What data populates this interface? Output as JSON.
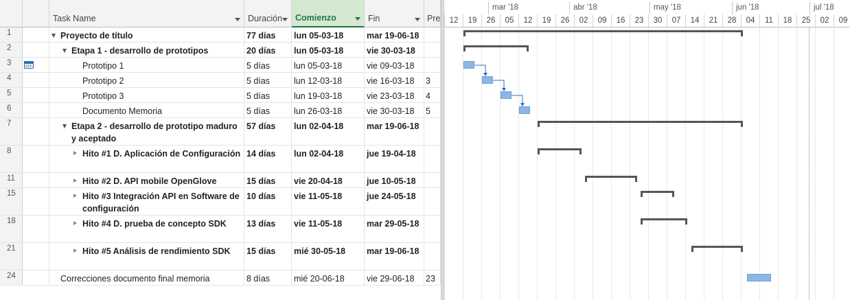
{
  "columns": {
    "info_glyph": "i",
    "task_name": "Task Name",
    "duration": "Duración",
    "start": "Comienzo",
    "finish": "Fin",
    "predecessors": "Pre"
  },
  "timescale": {
    "months": [
      "mar '18",
      "abr '18",
      "may '18",
      "jun '18",
      "jul '18"
    ],
    "weeks": [
      "12",
      "19",
      "26",
      "05",
      "12",
      "19",
      "26",
      "02",
      "09",
      "16",
      "23",
      "30",
      "07",
      "14",
      "21",
      "28",
      "04",
      "11",
      "18",
      "25",
      "02",
      "09"
    ]
  },
  "tasks": [
    {
      "id": "1",
      "name": "Proyecto de título",
      "duration": "77 días",
      "start": "lun 05-03-18",
      "finish": "mar 19-06-18",
      "pred": "",
      "summary": true,
      "level": 0,
      "collapsed": false,
      "indicator": ""
    },
    {
      "id": "2",
      "name": "Etapa 1 - desarrollo de prototipos",
      "duration": "20 días",
      "start": "lun 05-03-18",
      "finish": "vie 30-03-18",
      "pred": "",
      "summary": true,
      "level": 1,
      "collapsed": false,
      "indicator": ""
    },
    {
      "id": "3",
      "name": "Prototipo 1",
      "duration": "5 días",
      "start": "lun 05-03-18",
      "finish": "vie 09-03-18",
      "pred": "",
      "summary": false,
      "level": 2,
      "collapsed": false,
      "indicator": "calendar-icon"
    },
    {
      "id": "4",
      "name": "Prototipo 2",
      "duration": "5 días",
      "start": "lun 12-03-18",
      "finish": "vie 16-03-18",
      "pred": "3",
      "summary": false,
      "level": 2,
      "collapsed": false,
      "indicator": ""
    },
    {
      "id": "5",
      "name": "Prototipo 3",
      "duration": "5 días",
      "start": "lun 19-03-18",
      "finish": "vie 23-03-18",
      "pred": "4",
      "summary": false,
      "level": 2,
      "collapsed": false,
      "indicator": ""
    },
    {
      "id": "6",
      "name": "Documento Memoria",
      "duration": "5 días",
      "start": "lun 26-03-18",
      "finish": "vie 30-03-18",
      "pred": "5",
      "summary": false,
      "level": 2,
      "collapsed": false,
      "indicator": ""
    },
    {
      "id": "7",
      "name": "Etapa 2 - desarrollo de prototipo maduro y aceptado",
      "duration": "57 días",
      "start": "lun 02-04-18",
      "finish": "mar 19-06-18",
      "pred": "",
      "summary": true,
      "level": 1,
      "collapsed": false,
      "indicator": ""
    },
    {
      "id": "8",
      "name": "Hito #1 D. Aplicación de Configuración",
      "duration": "14 días",
      "start": "lun 02-04-18",
      "finish": "jue 19-04-18",
      "pred": "",
      "summary": true,
      "level": 2,
      "collapsed": true,
      "indicator": ""
    },
    {
      "id": "11",
      "name": "Hito #2 D. API mobile OpenGlove",
      "duration": "15 días",
      "start": "vie 20-04-18",
      "finish": "jue 10-05-18",
      "pred": "",
      "summary": true,
      "level": 2,
      "collapsed": true,
      "indicator": ""
    },
    {
      "id": "15",
      "name": "Hito #3 Integración API en Software de configuración",
      "duration": "10 días",
      "start": "vie 11-05-18",
      "finish": "jue 24-05-18",
      "pred": "",
      "summary": true,
      "level": 2,
      "collapsed": true,
      "indicator": ""
    },
    {
      "id": "18",
      "name": "Hito #4 D. prueba de concepto SDK",
      "duration": "13 días",
      "start": "vie 11-05-18",
      "finish": "mar 29-05-18",
      "pred": "",
      "summary": true,
      "level": 2,
      "collapsed": true,
      "indicator": ""
    },
    {
      "id": "21",
      "name": "Hito #5 Análisis de rendimiento SDK",
      "duration": "15 días",
      "start": "mié 30-05-18",
      "finish": "mar 19-06-18",
      "pred": "",
      "summary": true,
      "level": 2,
      "collapsed": true,
      "indicator": ""
    },
    {
      "id": "24",
      "name": "Correcciones documento final memoria",
      "duration": "8 días",
      "start": "mié 20-06-18",
      "finish": "vie 29-06-18",
      "pred": "23",
      "summary": false,
      "level": 0,
      "collapsed": false,
      "indicator": ""
    }
  ],
  "colors": {
    "task_bar": "#8cb6e4",
    "summary_bar": "#555555",
    "link": "#2b6cb8",
    "sorted_header": "#217346"
  }
}
